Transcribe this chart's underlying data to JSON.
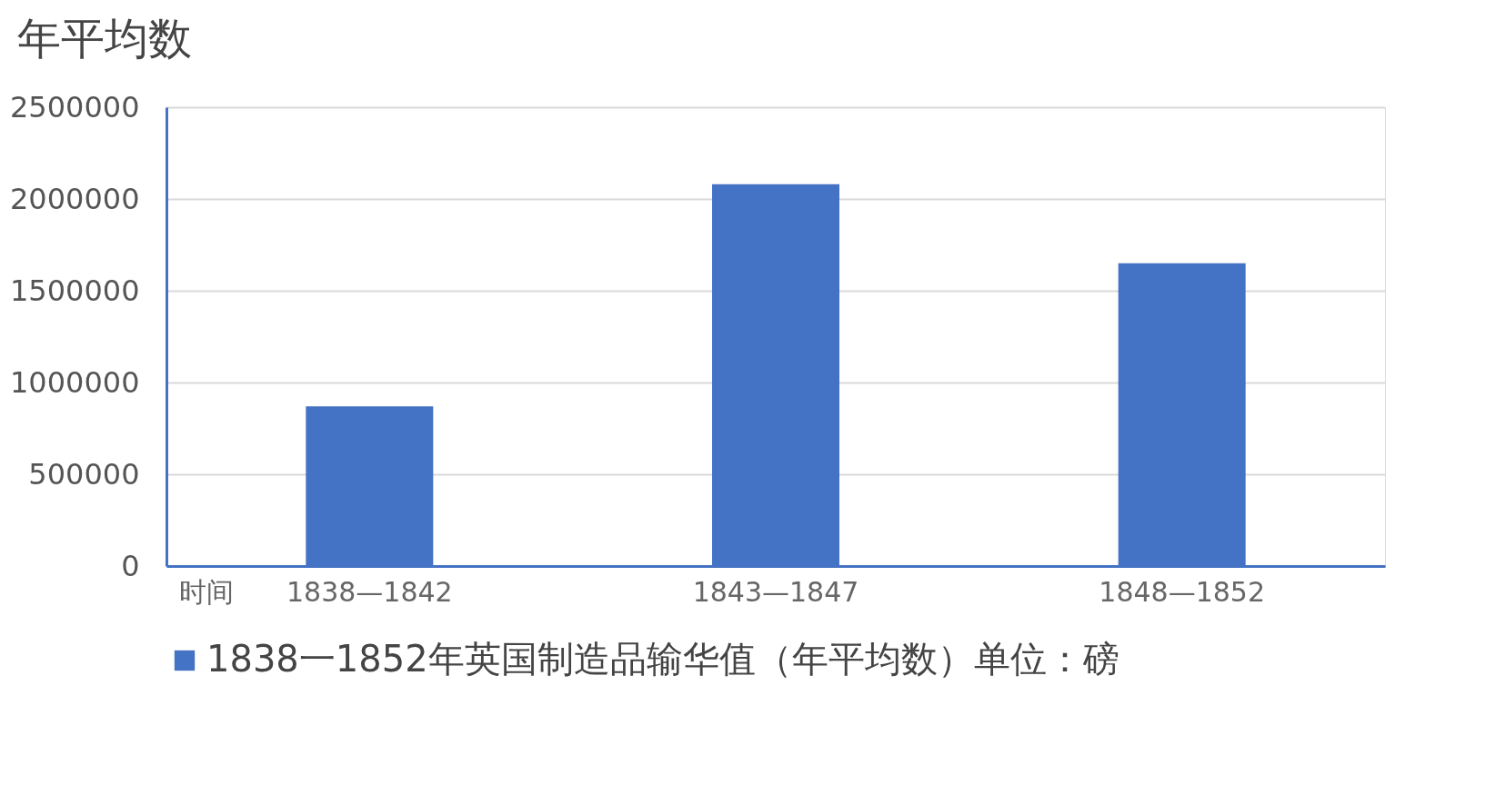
{
  "chart_data": {
    "type": "bar",
    "ylabel": "年平均数",
    "xlabel": "时间",
    "categories": [
      "1838—1842",
      "1843—1847",
      "1848—1852"
    ],
    "series": [
      {
        "name": "1838一1852年英国制造品输华值（年平均数）单位：磅",
        "color": "#4472c4",
        "values": [
          870000,
          2080000,
          1650000
        ]
      }
    ],
    "ylim": [
      0,
      2500000
    ],
    "yticks": [
      0,
      500000,
      1000000,
      1500000,
      2000000,
      2500000
    ],
    "grid": "y",
    "legend": "bottom"
  }
}
